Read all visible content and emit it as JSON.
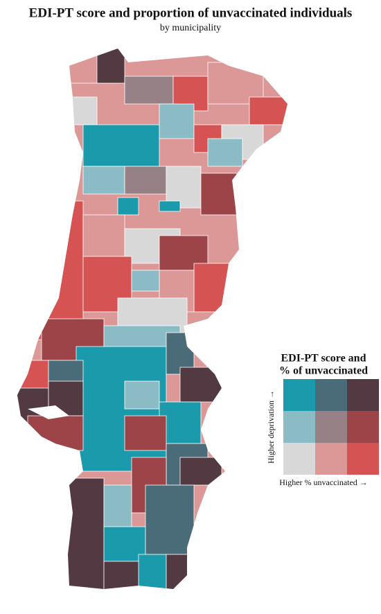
{
  "header": {
    "title": "EDI-PT score and proportion of unvaccinated individuals",
    "subtitle": "by municipality"
  },
  "legend": {
    "title": [
      "EDI-PT score and",
      "% of unvaccinated"
    ],
    "y_label": "Higher deprivation →",
    "x_label": "Higher % unvaccinated →",
    "colors": [
      [
        "#1a9aaa",
        "#4a6b78",
        "#533a42"
      ],
      [
        "#8bbcc6",
        "#958186",
        "#9c4447"
      ],
      [
        "#d8d8d8",
        "#dc9797",
        "#d65353"
      ]
    ]
  }
}
